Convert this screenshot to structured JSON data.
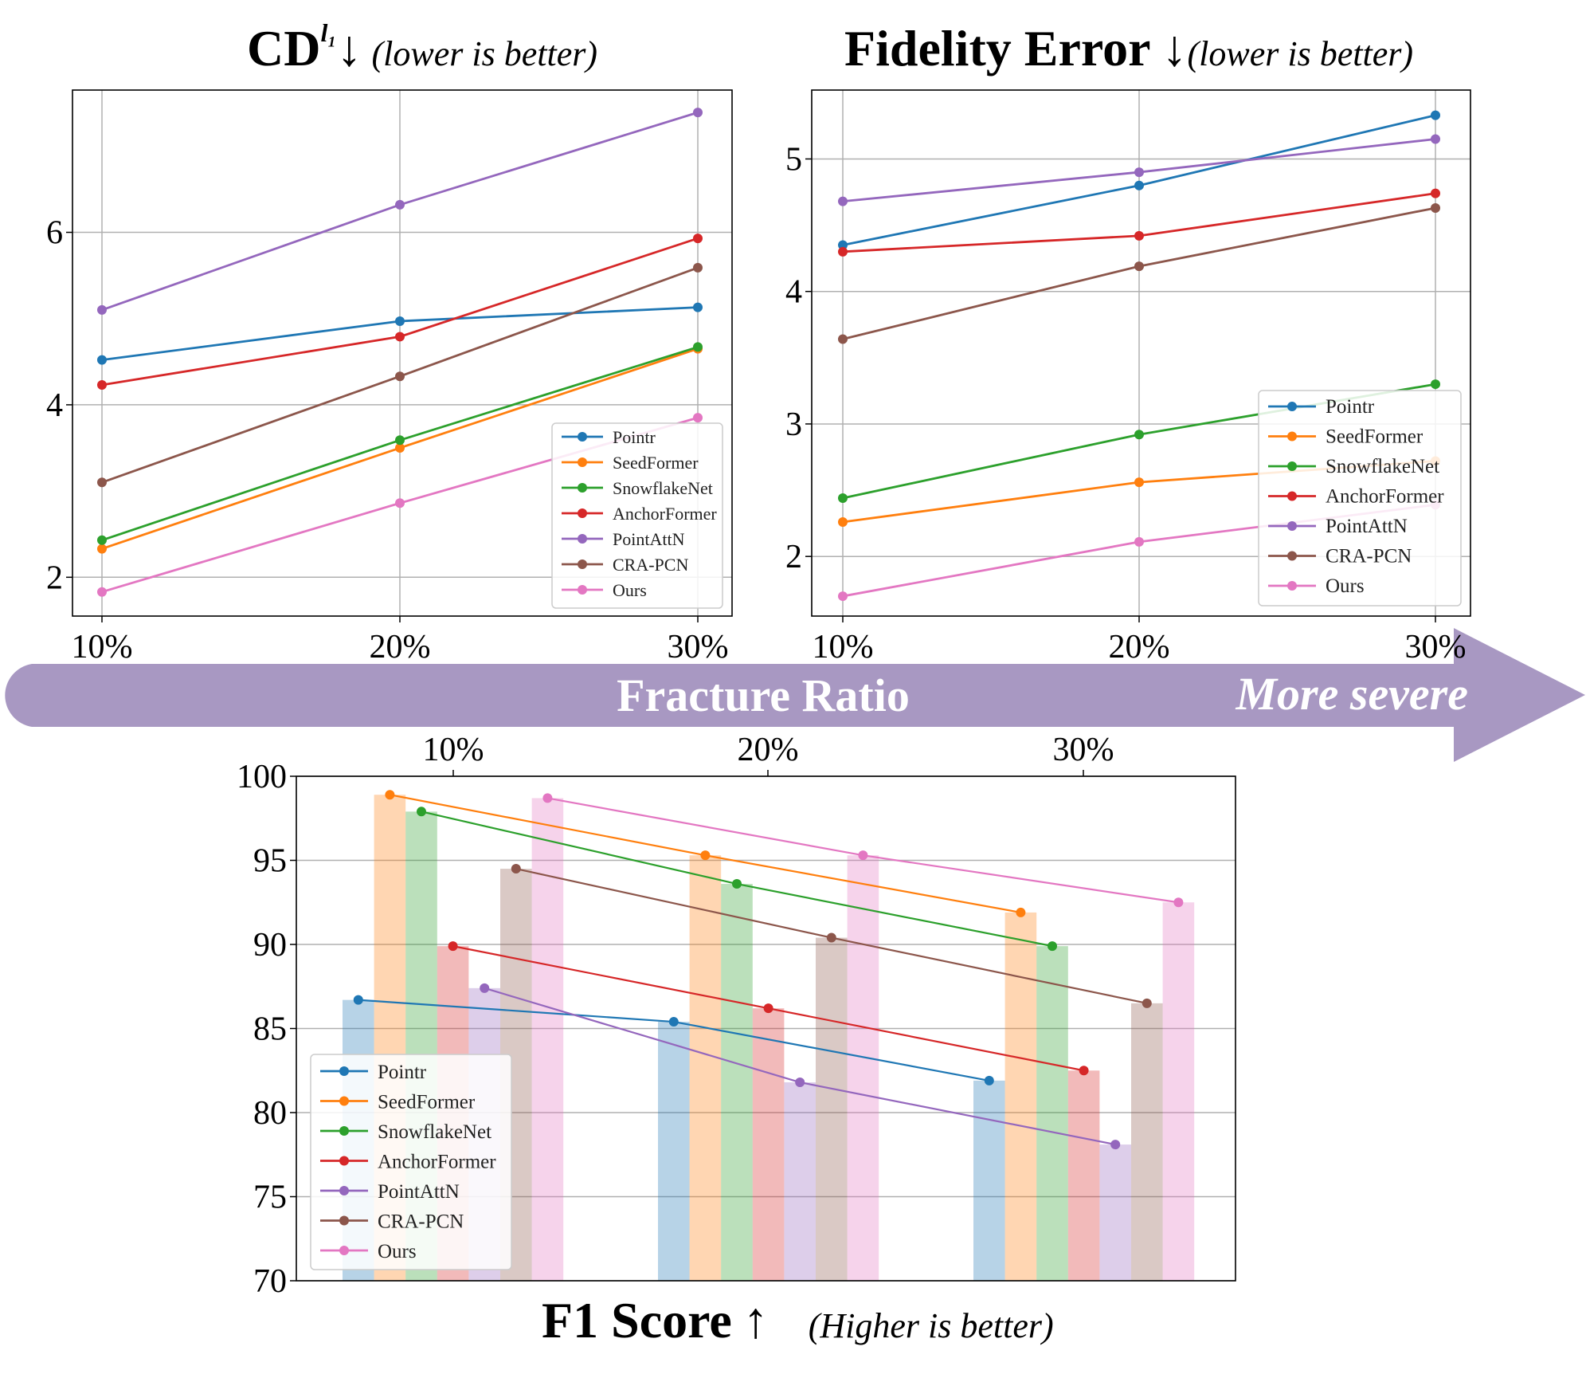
{
  "colors": {
    "Pointr": "#1f77b4",
    "SeedFormer": "#ff7f0e",
    "SnowflakeNet": "#2ca02c",
    "AnchorFormer": "#d62728",
    "PointAttN": "#9467bd",
    "CRA-PCN": "#8c564b",
    "Ours": "#e377c2",
    "arrow": "#a898c2"
  },
  "arrow": {
    "label": "Fracture Ratio",
    "severity_label": "More severe"
  },
  "chart_data": [
    {
      "id": "cd",
      "type": "line",
      "title": "CD",
      "title_sup": "l₁",
      "title_arrow": "↓",
      "title_note": "(lower is better)",
      "categories": [
        "10%",
        "20%",
        "30%"
      ],
      "yticks": [
        2,
        4,
        6
      ],
      "ylim": [
        1.55,
        7.65
      ],
      "grid": true,
      "legend_position": "lower-right",
      "series": [
        {
          "name": "Pointr",
          "values": [
            4.52,
            4.97,
            5.13
          ]
        },
        {
          "name": "SeedFormer",
          "values": [
            2.33,
            3.5,
            4.65
          ]
        },
        {
          "name": "SnowflakeNet",
          "values": [
            2.43,
            3.59,
            4.67
          ]
        },
        {
          "name": "AnchorFormer",
          "values": [
            4.23,
            4.79,
            5.93
          ]
        },
        {
          "name": "PointAttN",
          "values": [
            5.1,
            6.32,
            7.39
          ]
        },
        {
          "name": "CRA-PCN",
          "values": [
            3.1,
            4.33,
            5.59
          ]
        },
        {
          "name": "Ours",
          "values": [
            1.83,
            2.86,
            3.85
          ]
        }
      ]
    },
    {
      "id": "fidelity",
      "type": "line",
      "title": "Fidelity Error",
      "title_arrow": "↓",
      "title_note": "(lower is better)",
      "categories": [
        "10%",
        "20%",
        "30%"
      ],
      "yticks": [
        2,
        3,
        4,
        5
      ],
      "ylim": [
        1.55,
        5.52
      ],
      "grid": true,
      "legend_position": "lower-right",
      "series": [
        {
          "name": "Pointr",
          "values": [
            4.35,
            4.8,
            5.33
          ]
        },
        {
          "name": "SeedFormer",
          "values": [
            2.26,
            2.56,
            2.72
          ]
        },
        {
          "name": "SnowflakeNet",
          "values": [
            2.44,
            2.92,
            3.3
          ]
        },
        {
          "name": "AnchorFormer",
          "values": [
            4.3,
            4.42,
            4.74
          ]
        },
        {
          "name": "PointAttN",
          "values": [
            4.68,
            4.9,
            5.15
          ]
        },
        {
          "name": "CRA-PCN",
          "values": [
            3.64,
            4.19,
            4.63
          ]
        },
        {
          "name": "Ours",
          "values": [
            1.7,
            2.11,
            2.39
          ]
        }
      ]
    },
    {
      "id": "f1",
      "type": "bar",
      "title": "F1 Score",
      "title_arrow": "↑",
      "title_note": "(Higher is better)",
      "categories": [
        "10%",
        "20%",
        "30%"
      ],
      "yticks": [
        70,
        75,
        80,
        85,
        90,
        95,
        100
      ],
      "ylim": [
        70,
        100
      ],
      "grid": true,
      "legend_position": "lower-left",
      "series": [
        {
          "name": "Pointr",
          "values": [
            86.7,
            85.4,
            81.9
          ]
        },
        {
          "name": "SeedFormer",
          "values": [
            98.9,
            95.3,
            91.9
          ]
        },
        {
          "name": "SnowflakeNet",
          "values": [
            97.9,
            93.6,
            89.9
          ]
        },
        {
          "name": "AnchorFormer",
          "values": [
            89.9,
            86.2,
            82.5
          ]
        },
        {
          "name": "PointAttN",
          "values": [
            87.4,
            81.8,
            78.1
          ]
        },
        {
          "name": "CRA-PCN",
          "values": [
            94.5,
            90.4,
            86.5
          ]
        },
        {
          "name": "Ours",
          "values": [
            98.7,
            95.3,
            92.5
          ]
        }
      ]
    }
  ]
}
